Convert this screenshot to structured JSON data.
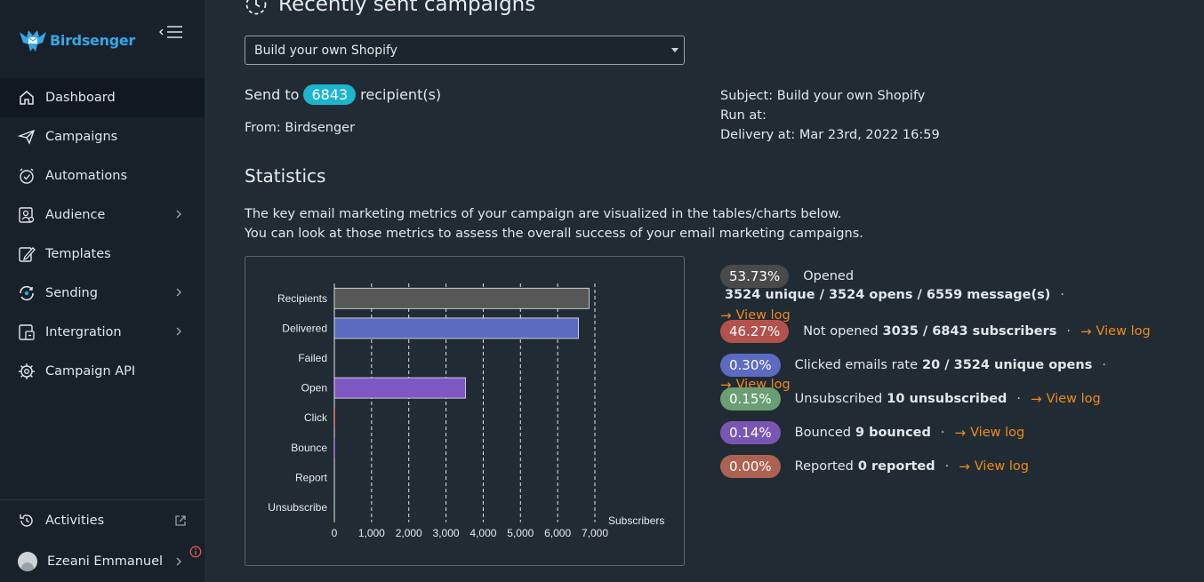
{
  "brand": {
    "name": "Birdsenger",
    "accent": "#35a7e8"
  },
  "sidebar": {
    "items": [
      {
        "label": "Dashboard",
        "icon": "home-icon",
        "active": true,
        "submenu": false
      },
      {
        "label": "Campaigns",
        "icon": "paper-plane-icon",
        "active": false,
        "submenu": false
      },
      {
        "label": "Automations",
        "icon": "alarm-clock-icon",
        "active": false,
        "submenu": false
      },
      {
        "label": "Audience",
        "icon": "audience-icon",
        "active": false,
        "submenu": true
      },
      {
        "label": "Templates",
        "icon": "template-edit-icon",
        "active": false,
        "submenu": false
      },
      {
        "label": "Sending",
        "icon": "sending-icon",
        "active": false,
        "submenu": true
      },
      {
        "label": "Intergration",
        "icon": "integration-icon",
        "active": false,
        "submenu": true
      },
      {
        "label": "Campaign API",
        "icon": "gear-api-icon",
        "active": false,
        "submenu": false
      }
    ],
    "activities_label": "Activities",
    "user_name": "Ezeani Emmanuel"
  },
  "main": {
    "title": "Recently sent campaigns",
    "campaign_select": "Build your own Shopify",
    "send_to_prefix": "Send to",
    "recipient_count": "6843",
    "send_to_suffix": "recipient(s)",
    "from_label": "From:",
    "from_value": "Birdsenger",
    "subject_label": "Subject:",
    "subject_value": "Build your own Shopify",
    "run_at_label": "Run at:",
    "run_at_value": "",
    "delivery_label": "Delivery at:",
    "delivery_value": "Mar 23rd, 2022 16:59",
    "stats_title": "Statistics",
    "stats_desc_1": "The key email marketing metrics of your campaign are visualized in the tables/charts below.",
    "stats_desc_2": "You can look at those metrics to assess the overall success of your email marketing campaigns."
  },
  "metrics": [
    {
      "pct": "53.73%",
      "color": "#4a4a4a",
      "label": "Opened",
      "detail": "3524 unique / 3524 opens / 6559 message(s)",
      "view": "View log"
    },
    {
      "pct": "46.27%",
      "color": "#b3514d",
      "label": "Not opened",
      "detail": "3035 / 6843 subscribers",
      "view": "View log"
    },
    {
      "pct": "0.30%",
      "color": "#5c6bc0",
      "label": "Clicked emails rate",
      "detail": "20 / 3524 unique opens",
      "view": "View log"
    },
    {
      "pct": "0.15%",
      "color": "#6a9e73",
      "label": "Unsubscribed",
      "detail": "10 unsubscribed",
      "view": "View log"
    },
    {
      "pct": "0.14%",
      "color": "#7a56b3",
      "label": "Bounced",
      "detail": "9 bounced",
      "view": "View log"
    },
    {
      "pct": "0.00%",
      "color": "#ad6150",
      "label": "Reported",
      "detail": "0 reported",
      "view": "View log"
    }
  ],
  "chart_data": {
    "type": "bar",
    "orientation": "horizontal",
    "categories": [
      "Recipients",
      "Delivered",
      "Failed",
      "Open",
      "Click",
      "Bounce",
      "Report",
      "Unsubscribe"
    ],
    "values": [
      6843,
      6559,
      0,
      3524,
      20,
      9,
      0,
      10
    ],
    "colors": [
      "#575757",
      "#5c6bc0",
      "#d9534f",
      "#7e57c2",
      "#d9534f",
      "#7e57c2",
      "#d9534f",
      "#6a9e73"
    ],
    "xlabel": "Subscribers",
    "xlim": [
      0,
      7000
    ],
    "xticks": [
      0,
      1000,
      2000,
      3000,
      4000,
      5000,
      6000,
      7000
    ],
    "xtick_labels": [
      "0",
      "1,000",
      "2,000",
      "3,000",
      "4,000",
      "5,000",
      "6,000",
      "7,000"
    ],
    "grid": "vertical-dashed"
  }
}
